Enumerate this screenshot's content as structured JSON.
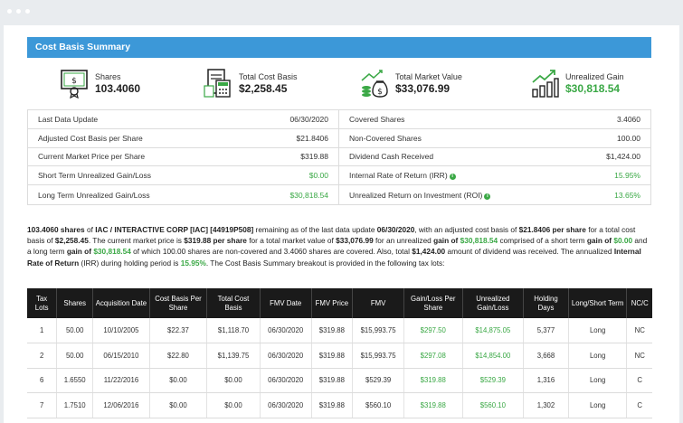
{
  "section_title": "Cost Basis Summary",
  "summary": [
    {
      "icon": "certificate-icon",
      "label": "Shares",
      "value": "103.4060",
      "green": false
    },
    {
      "icon": "calculator-icon",
      "label": "Total Cost Basis",
      "value": "$2,258.45",
      "green": false
    },
    {
      "icon": "money-bag-icon",
      "label": "Total Market Value",
      "value": "$33,076.99",
      "green": false
    },
    {
      "icon": "growth-chart-icon",
      "label": "Unrealized Gain",
      "value": "$30,818.54",
      "green": true
    }
  ],
  "info_left": [
    {
      "label": "Last Data Update",
      "value": "06/30/2020",
      "green": false,
      "info": false
    },
    {
      "label": "Adjusted Cost Basis per Share",
      "value": "$21.8406",
      "green": false,
      "info": false
    },
    {
      "label": "Current Market Price per Share",
      "value": "$319.88",
      "green": false,
      "info": false
    },
    {
      "label": "Short Term Unrealized Gain/Loss",
      "value": "$0.00",
      "green": true,
      "info": false
    },
    {
      "label": "Long Term Unrealized Gain/Loss",
      "value": "$30,818.54",
      "green": true,
      "info": false
    }
  ],
  "info_right": [
    {
      "label": "Covered Shares",
      "value": "3.4060",
      "green": false,
      "info": false
    },
    {
      "label": "Non-Covered Shares",
      "value": "100.00",
      "green": false,
      "info": false
    },
    {
      "label": "Dividend Cash Received",
      "value": "$1,424.00",
      "green": false,
      "info": false
    },
    {
      "label": "Internal Rate of Return (IRR)",
      "value": "15.95%",
      "green": true,
      "info": true
    },
    {
      "label": "Unrealized Return on Investment (ROI)",
      "value": "13.65%",
      "green": true,
      "info": true
    }
  ],
  "paragraph": [
    {
      "t": "103.4060 shares",
      "s": "b"
    },
    {
      "t": " of ",
      "s": ""
    },
    {
      "t": "IAC / INTERACTIVE CORP [IAC] [44919P508]",
      "s": "b"
    },
    {
      "t": " remaining as of the last data update ",
      "s": ""
    },
    {
      "t": "06/30/2020",
      "s": "b"
    },
    {
      "t": ", with an adjusted cost basis of ",
      "s": ""
    },
    {
      "t": "$21.8406 per share",
      "s": "b"
    },
    {
      "t": " for a total cost basis of ",
      "s": ""
    },
    {
      "t": "$2,258.45",
      "s": "b"
    },
    {
      "t": ". The current market price is ",
      "s": ""
    },
    {
      "t": "$319.88 per share",
      "s": "b"
    },
    {
      "t": " for a total market value of ",
      "s": ""
    },
    {
      "t": "$33,076.99",
      "s": "b"
    },
    {
      "t": " for an unrealized ",
      "s": ""
    },
    {
      "t": "gain of ",
      "s": "b"
    },
    {
      "t": "$30,818.54",
      "s": "g"
    },
    {
      "t": " comprised of a short term ",
      "s": ""
    },
    {
      "t": "gain of ",
      "s": "b"
    },
    {
      "t": "$0.00",
      "s": "g"
    },
    {
      "t": " and a long term ",
      "s": ""
    },
    {
      "t": "gain of ",
      "s": "b"
    },
    {
      "t": "$30,818.54",
      "s": "g"
    },
    {
      "t": " of which 100.00 shares are non-covered and 3.4060 shares are covered. Also, total ",
      "s": ""
    },
    {
      "t": "$1,424.00",
      "s": "b"
    },
    {
      "t": " amount of dividend was received. The annualized ",
      "s": ""
    },
    {
      "t": "Internal Rate of Return",
      "s": "b"
    },
    {
      "t": " (IRR) during holding period is ",
      "s": ""
    },
    {
      "t": "15.95%",
      "s": "g"
    },
    {
      "t": ". The Cost Basis Summary breakout is provided in the following tax lots:",
      "s": ""
    }
  ],
  "lots": {
    "headers": [
      "Tax Lots",
      "Shares",
      "Acquisition Date",
      "Cost Basis Per Share",
      "Total Cost Basis",
      "FMV Date",
      "FMV Price",
      "FMV",
      "Gain/Loss Per Share",
      "Unrealized Gain/Loss",
      "Holding Days",
      "Long/Short Term",
      "NC/C"
    ],
    "rows": [
      [
        "1",
        "50.00",
        "10/10/2005",
        "$22.37",
        "$1,118.70",
        "06/30/2020",
        "$319.88",
        "$15,993.75",
        "$297.50",
        "$14,875.05",
        "5,377",
        "Long",
        "NC"
      ],
      [
        "2",
        "50.00",
        "06/15/2010",
        "$22.80",
        "$1,139.75",
        "06/30/2020",
        "$319.88",
        "$15,993.75",
        "$297.08",
        "$14,854.00",
        "3,668",
        "Long",
        "NC"
      ],
      [
        "6",
        "1.6550",
        "11/22/2016",
        "$0.00",
        "$0.00",
        "06/30/2020",
        "$319.88",
        "$529.39",
        "$319.88",
        "$529.39",
        "1,316",
        "Long",
        "C"
      ],
      [
        "7",
        "1.7510",
        "12/06/2016",
        "$0.00",
        "$0.00",
        "06/30/2020",
        "$319.88",
        "$560.10",
        "$319.88",
        "$560.10",
        "1,302",
        "Long",
        "C"
      ]
    ],
    "green_columns": [
      8,
      9
    ]
  },
  "colors": {
    "accent": "#3c98d8",
    "gain": "#3aa845",
    "header_bg": "#1a1a1a",
    "window_bg": "#e9ecef"
  }
}
